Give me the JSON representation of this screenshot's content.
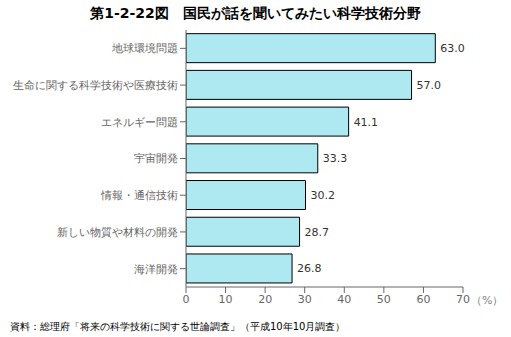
{
  "chart_data": {
    "type": "bar",
    "title": "第1-2-22図　国民が話を聞いてみたい科学技術分野",
    "categories": [
      "海洋開発",
      "新しい物質や材料の開発",
      "情報・通信技術",
      "宇宙開発",
      "エネルギー問題",
      "生命に関する科学技術や医療技術",
      "地球環境問題"
    ],
    "values": [
      26.8,
      28.7,
      30.2,
      33.3,
      41.1,
      57.0,
      63.0
    ],
    "value_labels": [
      "26.8",
      "28.7",
      "30.2",
      "33.3",
      "41.1",
      "57.0",
      "63.0"
    ],
    "color": "#aee8f0",
    "orientation": "horizontal",
    "xlabel": "（%）",
    "xlim": [
      0,
      70
    ],
    "xticks": [
      0,
      10,
      20,
      30,
      40,
      50,
      60,
      70
    ],
    "data_labels": true,
    "annotations": [
      "資料：総理府「将来の科学技術に関する世論調査」（平成10年10月調査）"
    ]
  }
}
